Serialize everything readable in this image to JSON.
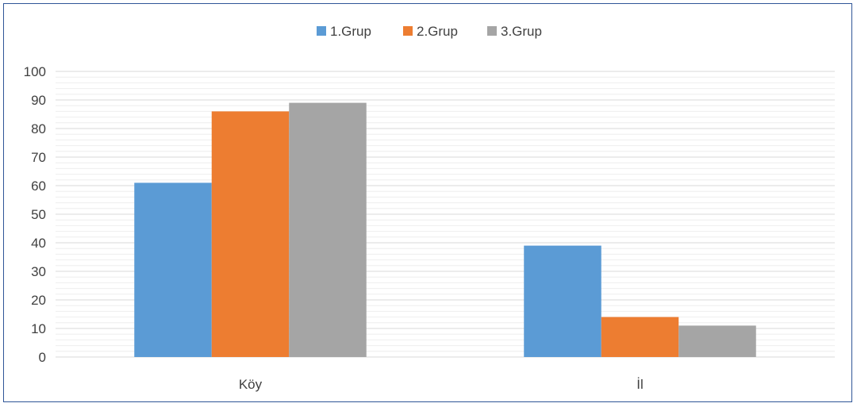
{
  "chart_data": {
    "type": "bar",
    "categories": [
      "Köy",
      "İl"
    ],
    "series": [
      {
        "name": "1.Grup",
        "values": [
          61,
          39
        ],
        "color": "#5b9bd5"
      },
      {
        "name": "2.Grup",
        "values": [
          86,
          14
        ],
        "color": "#ed7d31"
      },
      {
        "name": "3.Grup",
        "values": [
          89,
          11
        ],
        "color": "#a5a5a5"
      }
    ],
    "ylim": [
      0,
      100
    ],
    "yticks": [
      0,
      10,
      20,
      30,
      40,
      50,
      60,
      70,
      80,
      90,
      100
    ],
    "grid": true,
    "legend": "top-center"
  }
}
